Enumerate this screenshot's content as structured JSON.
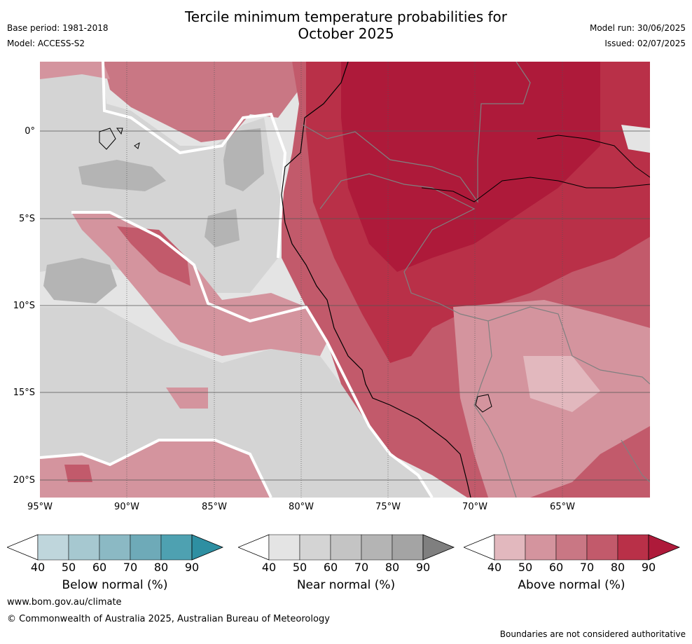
{
  "title_line1": "Tercile minimum temperature probabilities for",
  "title_line2": "October 2025",
  "meta_left": [
    "Base period: 1981-2018",
    "Model: ACCESS-S2"
  ],
  "meta_right": [
    "Model run: 30/06/2025",
    "Issued: 02/07/2025"
  ],
  "y_ticks": [
    "0°",
    "5°S",
    "10°S",
    "15°S",
    "20°S"
  ],
  "x_ticks": [
    "95°W",
    "90°W",
    "85°W",
    "80°W",
    "75°W",
    "70°W",
    "65°W"
  ],
  "colorbars": [
    {
      "label": "Below normal (%)",
      "ticks": [
        "40",
        "50",
        "60",
        "70",
        "80",
        "90"
      ],
      "colors": [
        "#ffffff",
        "#bfd6dc",
        "#a6c8d0",
        "#8bb9c4",
        "#6eaab8",
        "#4ea1b1",
        "#2e8fa2"
      ]
    },
    {
      "label": "Near normal (%)",
      "ticks": [
        "40",
        "50",
        "60",
        "70",
        "80",
        "90"
      ],
      "colors": [
        "#ffffff",
        "#e4e4e4",
        "#d4d4d4",
        "#c4c4c4",
        "#b4b4b4",
        "#a4a4a4",
        "#7f7f7f"
      ]
    },
    {
      "label": "Above normal (%)",
      "ticks": [
        "40",
        "50",
        "60",
        "70",
        "80",
        "90"
      ],
      "colors": [
        "#ffffff",
        "#e2b8be",
        "#d4949e",
        "#c97784",
        "#c25a6b",
        "#b93048",
        "#ae1a3a"
      ]
    }
  ],
  "footer_url": "www.bom.gov.au/climate",
  "footer_copyright": "© Commonwealth of Australia 2025, Australian Bureau of Meteorology",
  "disclaimer": "Boundaries are not considered authoritative"
}
